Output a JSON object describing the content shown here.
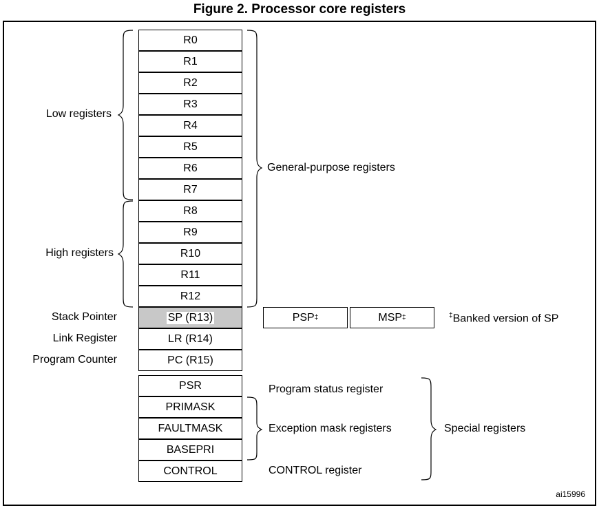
{
  "figure_title": "Figure 2. Processor core registers",
  "core_registers": [
    "R0",
    "R1",
    "R2",
    "R3",
    "R4",
    "R5",
    "R6",
    "R7",
    "R8",
    "R9",
    "R10",
    "R11",
    "R12",
    "SP (R13)",
    "LR (R14)",
    "PC (R15)"
  ],
  "special_registers": [
    "PSR",
    "PRIMASK",
    "FAULTMASK",
    "BASEPRI",
    "CONTROL"
  ],
  "banked": {
    "psp": "PSP",
    "msp": "MSP",
    "dagger": "‡",
    "note": "Banked version of SP"
  },
  "labels": {
    "low": "Low registers",
    "high": "High registers",
    "general": "General-purpose registers",
    "sp": "Stack Pointer",
    "lr": "Link Register",
    "pc": "Program Counter",
    "psr": "Program status register",
    "exception": "Exception mask registers",
    "control": "CONTROL register",
    "special": "Special registers"
  },
  "figure_code": "ai15996"
}
